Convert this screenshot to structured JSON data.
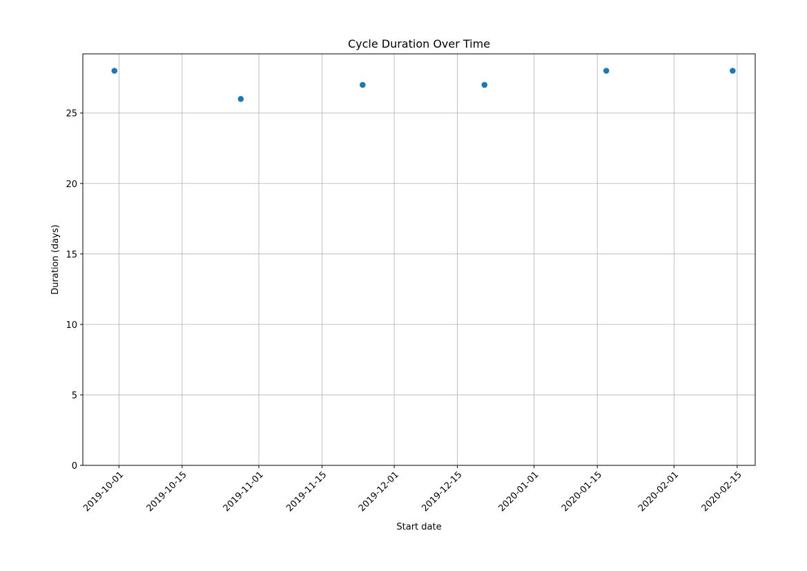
{
  "chart_data": {
    "type": "scatter",
    "title": "Cycle Duration Over Time",
    "xlabel": "Start date",
    "ylabel": "Duration (days)",
    "x": [
      "2019-09-30",
      "2019-10-28",
      "2019-11-24",
      "2019-12-21",
      "2020-01-17",
      "2020-02-14"
    ],
    "y": [
      28,
      26,
      27,
      27,
      28,
      28
    ],
    "xlim": [
      "2019-09-23",
      "2020-02-19"
    ],
    "ylim": [
      0,
      29.2
    ],
    "x_ticks": [
      "2019-10-01",
      "2019-10-15",
      "2019-11-01",
      "2019-11-15",
      "2019-12-01",
      "2019-12-15",
      "2020-01-01",
      "2020-01-15",
      "2020-02-01",
      "2020-02-15"
    ],
    "y_ticks": [
      0,
      5,
      10,
      15,
      20,
      25
    ],
    "grid": true,
    "marker_color": "#1f77b4"
  }
}
